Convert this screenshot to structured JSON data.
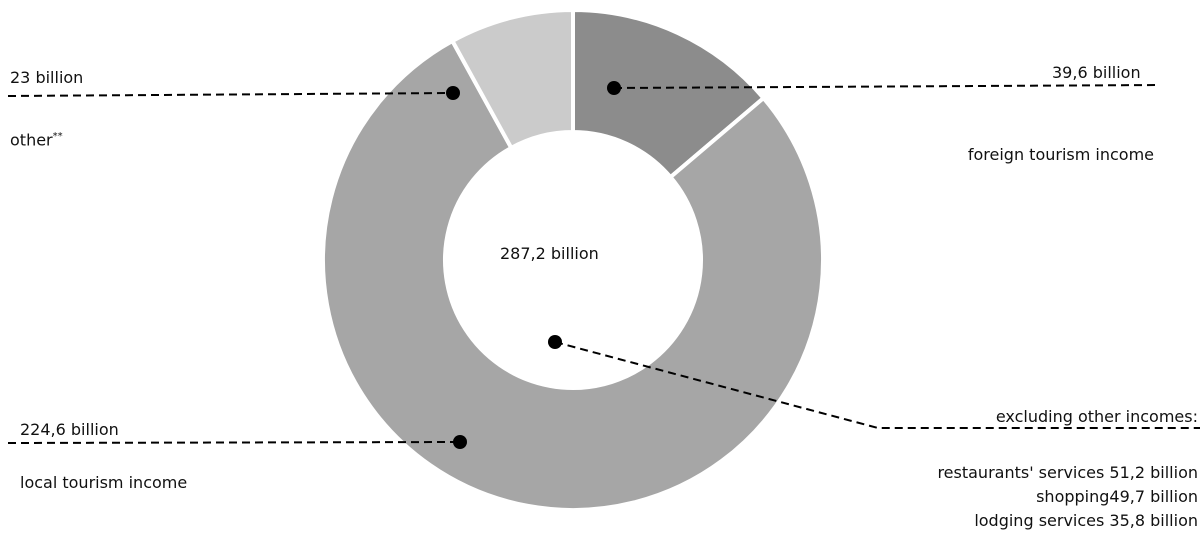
{
  "chart_data": {
    "type": "pie",
    "center_label": "287,2 billion",
    "total": 287.2,
    "slices": [
      {
        "name": "foreign tourism income",
        "value": 39.6,
        "value_label": "39,6 billion",
        "color": "#8c8c8c"
      },
      {
        "name": "local tourism income",
        "value": 224.6,
        "value_label": "224,6 billion",
        "color": "#a6a6a6"
      },
      {
        "name": "other",
        "value": 23,
        "value_label": "23 billion",
        "color": "#cbcbcb",
        "footnote_mark": "**"
      }
    ],
    "breakdown": {
      "title": "excluding other incomes:",
      "items": [
        "restaurants' services 51,2 billion",
        "shopping49,7 billion",
        "lodging services 35,8 billion"
      ]
    }
  }
}
